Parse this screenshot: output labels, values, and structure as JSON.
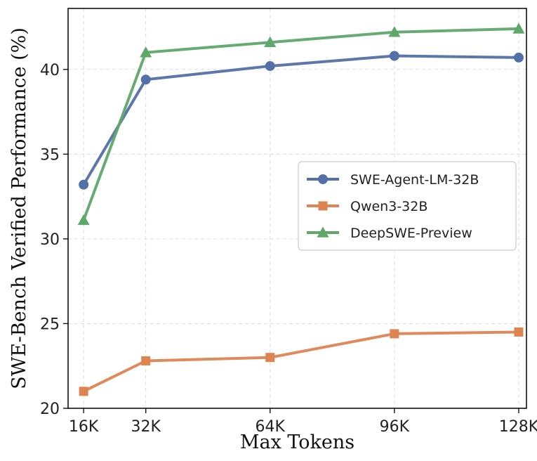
{
  "chart_data": {
    "type": "line",
    "xlabel": "Max Tokens",
    "ylabel": "SWE-Bench Verified Performance (%)",
    "x": [
      16,
      32,
      64,
      96,
      128
    ],
    "x_tick_labels": [
      "16K",
      "32K",
      "64K",
      "96K",
      "128K"
    ],
    "xlim": [
      12,
      130
    ],
    "ylim": [
      20,
      43.6
    ],
    "y_ticks": [
      20,
      25,
      30,
      35,
      40
    ],
    "grid": true,
    "legend_position": "center-right",
    "series": [
      {
        "name": "SWE-Agent-LM-32B",
        "values": [
          33.2,
          39.4,
          40.2,
          40.8,
          40.7
        ],
        "color": "#5470a8",
        "marker": "circle"
      },
      {
        "name": "Qwen3-32B",
        "values": [
          21.0,
          22.8,
          23.0,
          24.4,
          24.5
        ],
        "color": "#dd8452",
        "marker": "square"
      },
      {
        "name": "DeepSWE-Preview",
        "values": [
          31.1,
          41.0,
          41.6,
          42.2,
          42.4
        ],
        "color": "#5ea86a",
        "marker": "triangle"
      }
    ]
  }
}
